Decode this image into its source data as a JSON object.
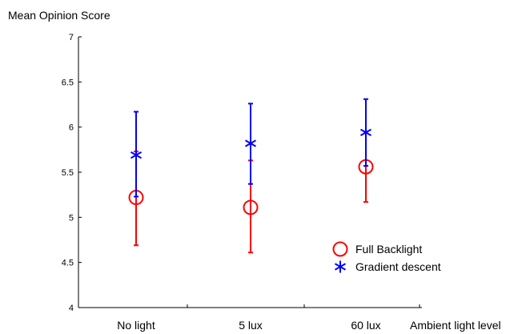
{
  "chart_data": {
    "type": "scatter",
    "ylabel": "Mean Opinion Score",
    "xlabel": "Ambient light level",
    "categories": [
      "No light",
      "5 lux",
      "60 lux"
    ],
    "ylim": [
      4,
      7
    ],
    "yticks": [
      "4",
      "4.5",
      "5",
      "5.5",
      "6",
      "6.5",
      "7"
    ],
    "grid": false,
    "legend_position": "bottom-right",
    "series": [
      {
        "name": "Full Backlight",
        "marker": "circle",
        "color": "#ff0000",
        "values": [
          5.22,
          5.11,
          5.56
        ],
        "err_low": [
          4.69,
          4.61,
          5.17
        ],
        "err_high": [
          5.73,
          5.63,
          5.95
        ]
      },
      {
        "name": "Gradient descent",
        "marker": "asterisk",
        "color": "#0000ff",
        "values": [
          5.69,
          5.82,
          5.94
        ],
        "err_low": [
          5.23,
          5.37,
          5.57
        ],
        "err_high": [
          6.17,
          6.26,
          6.31
        ]
      }
    ]
  }
}
